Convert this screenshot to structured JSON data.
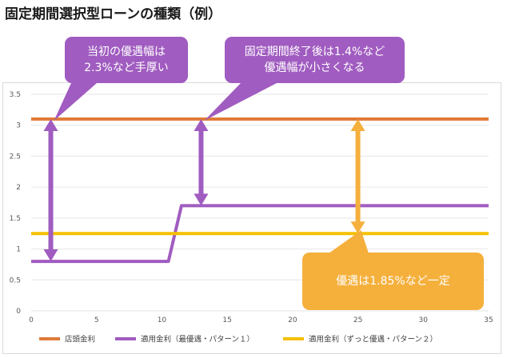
{
  "title": "固定期間選択型ローンの種類（例）",
  "colors": {
    "storefront": "#e07b39",
    "pattern1": "#a05cc0",
    "pattern2": "#f5c000",
    "callout_orange": "#f5b03c",
    "grid": "#e6e6e6",
    "axis_text": "#595959"
  },
  "callouts": {
    "first": {
      "line1": "当初の優遇幅は",
      "line2": "2.3%など手厚い"
    },
    "second": {
      "line1": "固定期間終了後は1.4%など",
      "line2": "優遇幅が小さくなる"
    },
    "third": {
      "line1": "優遇は1.85%など一定"
    }
  },
  "chart_data": {
    "type": "line",
    "title": "",
    "xlabel": "",
    "ylabel": "",
    "xlim": [
      0,
      35
    ],
    "ylim": [
      0,
      3.5
    ],
    "x_ticks": [
      0,
      5,
      10,
      15,
      20,
      25,
      30,
      35
    ],
    "y_ticks": [
      "0",
      "0.5",
      "1",
      "1.5",
      "2",
      "2.5",
      "3",
      "3.5"
    ],
    "grid": true,
    "legend_position": "bottom",
    "series": [
      {
        "name": "店頭金利",
        "color": "#e07b39",
        "points": [
          [
            0,
            3.1
          ],
          [
            35,
            3.1
          ]
        ]
      },
      {
        "name": "適用金利（最優遇・パターン１）",
        "color": "#a05cc0",
        "points": [
          [
            0,
            0.8
          ],
          [
            10.5,
            0.8
          ],
          [
            11.5,
            1.7
          ],
          [
            35,
            1.7
          ]
        ]
      },
      {
        "name": "適用金利（ずっと優遇・パターン２）",
        "color": "#f5c000",
        "points": [
          [
            0,
            1.25
          ],
          [
            35,
            1.25
          ]
        ]
      }
    ],
    "annotations": [
      {
        "type": "double-arrow",
        "x": 1.5,
        "from": 0.8,
        "to": 3.1,
        "color": "#a05cc0"
      },
      {
        "type": "double-arrow",
        "x": 13,
        "from": 1.7,
        "to": 3.1,
        "color": "#a05cc0"
      },
      {
        "type": "double-arrow",
        "x": 25,
        "from": 1.25,
        "to": 3.1,
        "color": "#f5b03c"
      }
    ]
  }
}
